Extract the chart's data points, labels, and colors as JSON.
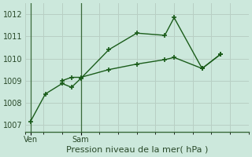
{
  "xlabel": "Pression niveau de la mer( hPa )",
  "background_color": "#cce8dc",
  "grid_color": "#b8cfc4",
  "line_color": "#1a5c1a",
  "marker_color": "#1a5c1a",
  "ylim": [
    1006.7,
    1012.5
  ],
  "yticks": [
    1007,
    1008,
    1009,
    1010,
    1011,
    1012
  ],
  "xlim": [
    0,
    12
  ],
  "xtick_ven": 0.3,
  "xtick_sam": 3.0,
  "ven_label": "Ven",
  "sam_label": "Sam",
  "xlabel_fontsize": 8,
  "ytick_fontsize": 7,
  "xtick_fontsize": 7,
  "series1_x": [
    0.3,
    1.1,
    2.0,
    2.5,
    3.0,
    4.5,
    6.0,
    7.5,
    8.0,
    9.5,
    10.5
  ],
  "series1_y": [
    1007.15,
    1008.4,
    1008.87,
    1008.7,
    1009.1,
    1010.4,
    1011.15,
    1011.05,
    1011.85,
    1009.55,
    1010.2
  ],
  "series2_x": [
    2.0,
    2.5,
    3.0,
    4.5,
    6.0,
    7.5,
    8.0,
    9.5,
    10.5
  ],
  "series2_y": [
    1009.0,
    1009.15,
    1009.15,
    1009.5,
    1009.75,
    1009.95,
    1010.05,
    1009.55,
    1010.2
  ]
}
